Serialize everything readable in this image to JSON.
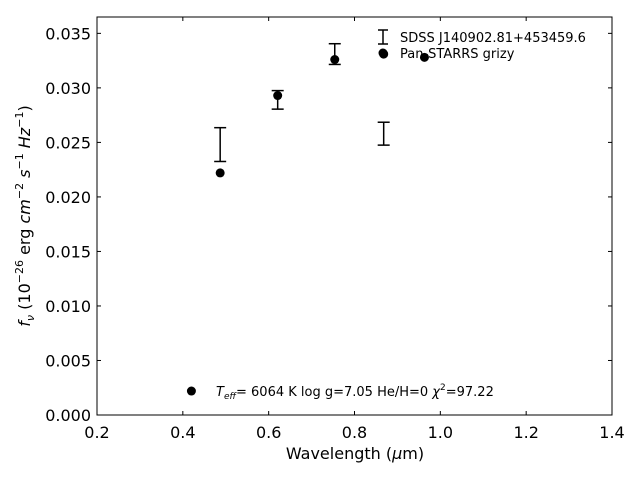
{
  "chart_data": {
    "type": "scatter",
    "xlabel": "Wavelength (",
    "xlabel_symbol": "μ",
    "xlabel_unit": "m)",
    "ylabel_parts": {
      "f": "f",
      "nu": "ν",
      "open": " (10",
      "exp26": "−26",
      "erg": " erg ",
      "cm": "cm",
      "exp2": "−2",
      "s": " s",
      "exp1a": "−1",
      "hz": " Hz",
      "exp1b": "−1",
      "close": ")"
    },
    "xlim": [
      0.2,
      1.4
    ],
    "ylim": [
      0.0,
      0.0365
    ],
    "xticks": [
      0.2,
      0.4,
      0.6,
      0.8,
      1.0,
      1.2,
      1.4
    ],
    "xtick_labels": [
      "0.2",
      "0.4",
      "0.6",
      "0.8",
      "1.0",
      "1.2",
      "1.4"
    ],
    "yticks": [
      0.0,
      0.005,
      0.01,
      0.015,
      0.02,
      0.025,
      0.03,
      0.035
    ],
    "ytick_labels": [
      "0.000",
      "0.005",
      "0.010",
      "0.015",
      "0.020",
      "0.025",
      "0.030",
      "0.035"
    ],
    "grid": false,
    "legend_position": "top-right",
    "series": [
      {
        "name": "SDSS J140902.81+453459.6",
        "kind": "errorbar",
        "color": "#000000",
        "points": [
          {
            "x": 0.487,
            "y": 0.0248,
            "yerr": 0.00155
          },
          {
            "x": 0.621,
            "y": 0.0289,
            "yerr": 0.00085
          },
          {
            "x": 0.754,
            "y": 0.0331,
            "yerr": 0.00095
          },
          {
            "x": 0.868,
            "y": 0.0258,
            "yerr": 0.00105
          }
        ]
      },
      {
        "name": "Pan-STARRS grizy",
        "kind": "marker",
        "color": "#000000",
        "points": [
          {
            "x": 0.487,
            "y": 0.0222
          },
          {
            "x": 0.621,
            "y": 0.0293
          },
          {
            "x": 0.754,
            "y": 0.0326
          },
          {
            "x": 0.868,
            "y": 0.0331
          },
          {
            "x": 0.963,
            "y": 0.0328
          }
        ]
      }
    ],
    "annotation": {
      "teff_sym": "T",
      "teff_sub": "eff",
      "teff_rest": "=  6064 K  log g=7.05  He/H=0  ",
      "chi_sym": "χ",
      "chi_sup": "2",
      "chi_rest": "=97.22",
      "marker_x": 0.42,
      "marker_y": 0.0022
    }
  }
}
